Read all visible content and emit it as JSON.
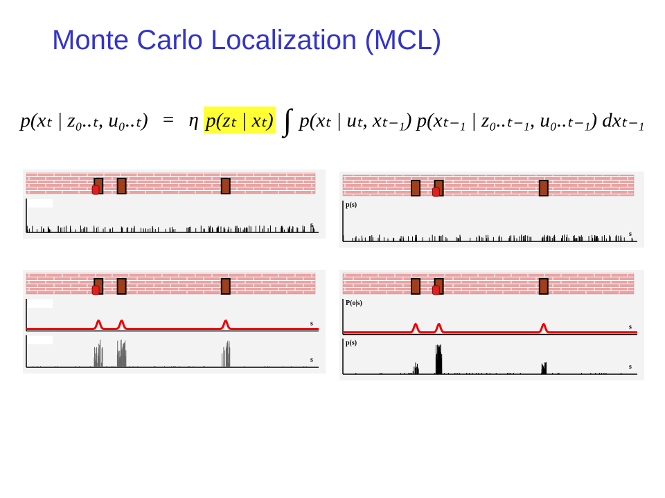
{
  "title": "Monte Carlo Localization (MCL)",
  "equation": {
    "lhs": "p(xₜ | z₀..ₜ, u₀..ₜ)",
    "equals": "=",
    "eta": "η",
    "likelihood": "p(zₜ | xₜ)",
    "integral": "∫",
    "rhs": "p(xₜ | uₜ, xₜ₋₁) p(xₜ₋₁ | z₀..ₜ₋₁, u₀..ₜ₋₁) dxₜ₋₁"
  },
  "panels": [
    {
      "plots": [
        {
          "xlabel": "s"
        }
      ]
    },
    {
      "plots": [
        {
          "ylabel": "p(s)",
          "xlabel": "s"
        }
      ]
    },
    {
      "plots": [
        {
          "xlabel": "s"
        },
        {
          "xlabel": "s"
        }
      ]
    },
    {
      "plots": [
        {
          "ylabel": "P(o|s)",
          "xlabel": "s"
        },
        {
          "ylabel": "p(s)",
          "xlabel": "s"
        }
      ]
    }
  ]
}
